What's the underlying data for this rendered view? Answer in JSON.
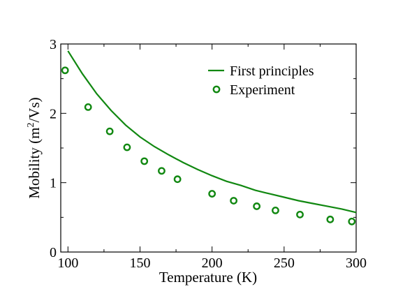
{
  "chart_data": {
    "type": "line",
    "xlabel": "Temperature (K)",
    "ylabel": "Mobility (m",
    "ylabel_sup": "2",
    "ylabel_tail": "/Vs)",
    "xlim": [
      95,
      300
    ],
    "ylim": [
      0,
      3
    ],
    "xticks": [
      100,
      150,
      200,
      250,
      300
    ],
    "yticks": [
      0,
      1,
      2,
      3
    ],
    "grid": false,
    "legend_position": "top-right",
    "series": [
      {
        "name": "First principles",
        "style": "line",
        "color": "#118811",
        "x": [
          100,
          110,
          120,
          130,
          140,
          150,
          160,
          170,
          180,
          190,
          200,
          210,
          220,
          230,
          240,
          250,
          260,
          270,
          280,
          290,
          300
        ],
        "y": [
          2.9,
          2.57,
          2.28,
          2.04,
          1.83,
          1.66,
          1.52,
          1.4,
          1.29,
          1.19,
          1.1,
          1.02,
          0.96,
          0.89,
          0.84,
          0.79,
          0.74,
          0.7,
          0.66,
          0.62,
          0.57
        ]
      },
      {
        "name": "Experiment",
        "style": "markers",
        "color": "#118811",
        "x": [
          98,
          114,
          129,
          141,
          153,
          165,
          176,
          200,
          215,
          231,
          244,
          261,
          282,
          297
        ],
        "y": [
          2.62,
          2.09,
          1.74,
          1.51,
          1.31,
          1.17,
          1.05,
          0.84,
          0.74,
          0.66,
          0.6,
          0.54,
          0.47,
          0.44
        ]
      }
    ]
  }
}
